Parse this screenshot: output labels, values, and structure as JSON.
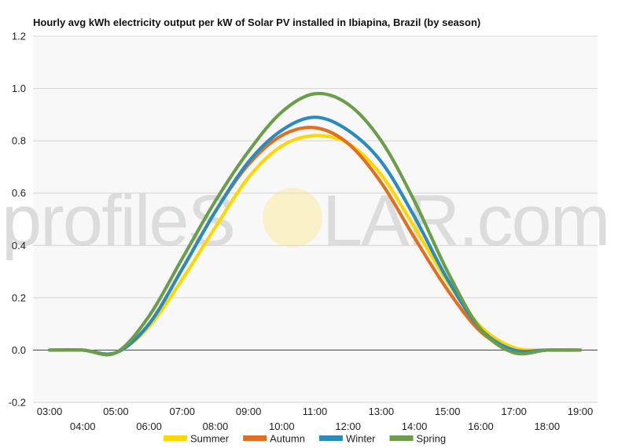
{
  "watermark": {
    "left": "profileS",
    "right": "LAR.com"
  },
  "chart_data": {
    "type": "line",
    "title": "Hourly avg kWh electricity output per kW of Solar PV installed in Ibiapina, Brazil (by season)",
    "xlabel": "",
    "ylabel": "",
    "ylim": [
      -0.2,
      1.2
    ],
    "yticks": [
      "-0.2",
      "0.0",
      "0.2",
      "0.4",
      "0.6",
      "0.8",
      "1.0",
      "1.2"
    ],
    "x": [
      "03:00",
      "04:00",
      "05:00",
      "06:00",
      "07:00",
      "08:00",
      "09:00",
      "10:00",
      "11:00",
      "12:00",
      "13:00",
      "14:00",
      "15:00",
      "16:00",
      "17:00",
      "18:00",
      "19:00"
    ],
    "grid": true,
    "legend_position": "bottom",
    "series": [
      {
        "name": "Summer",
        "color": "#FFD700",
        "values": [
          0,
          0,
          -0.01,
          0.09,
          0.27,
          0.47,
          0.66,
          0.78,
          0.82,
          0.79,
          0.67,
          0.47,
          0.26,
          0.09,
          0.01,
          0,
          0
        ]
      },
      {
        "name": "Autumn",
        "color": "#E07020",
        "values": [
          0,
          0,
          -0.01,
          0.1,
          0.31,
          0.53,
          0.71,
          0.82,
          0.85,
          0.79,
          0.64,
          0.43,
          0.23,
          0.07,
          0,
          0,
          0
        ]
      },
      {
        "name": "Winter",
        "color": "#2A8BBF",
        "values": [
          0,
          0,
          -0.01,
          0.1,
          0.31,
          0.53,
          0.72,
          0.84,
          0.89,
          0.84,
          0.72,
          0.51,
          0.27,
          0.08,
          0,
          0,
          0
        ]
      },
      {
        "name": "Spring",
        "color": "#6B9E4A",
        "values": [
          0,
          0,
          -0.01,
          0.13,
          0.35,
          0.57,
          0.76,
          0.91,
          0.98,
          0.94,
          0.8,
          0.57,
          0.3,
          0.08,
          -0.01,
          0,
          0
        ]
      }
    ]
  }
}
